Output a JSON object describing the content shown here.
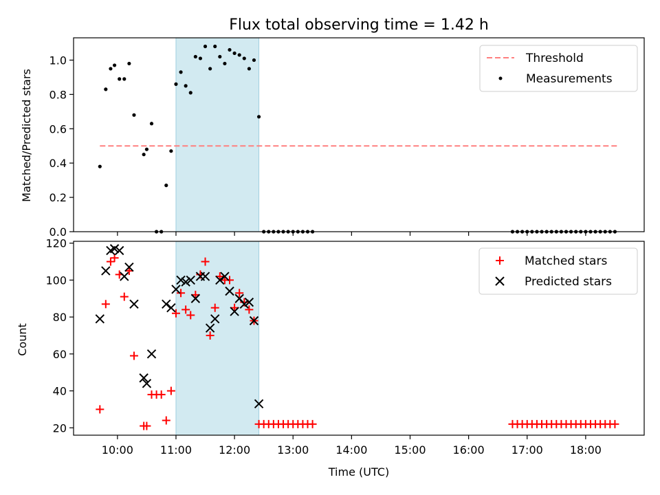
{
  "title": "Flux total observing time = 1.42 h",
  "chart_data": [
    {
      "type": "scatter",
      "ylabel": "Matched/Predicted stars",
      "xlabel": "",
      "ylim": [
        0,
        1.13
      ],
      "xlim": [
        "09:15",
        "19:00"
      ],
      "yticks": [
        "0.0",
        "0.2",
        "0.4",
        "0.6",
        "0.8",
        "1.0"
      ],
      "shaded_span": [
        "11:00",
        "12:25"
      ],
      "legend_position": "top-right",
      "threshold": {
        "name": "Threshold",
        "value": 0.5,
        "x_range": [
          "09:42",
          "18:32"
        ],
        "color": "#ff7f7f"
      },
      "series": [
        {
          "name": "Measurements",
          "color": "#000000",
          "points": [
            [
              "09:42",
              0.38
            ],
            [
              "09:48",
              0.83
            ],
            [
              "09:53",
              0.95
            ],
            [
              "09:57",
              0.97
            ],
            [
              "10:02",
              0.89
            ],
            [
              "10:07",
              0.89
            ],
            [
              "10:12",
              0.98
            ],
            [
              "10:17",
              0.68
            ],
            [
              "10:27",
              0.45
            ],
            [
              "10:30",
              0.48
            ],
            [
              "10:35",
              0.63
            ],
            [
              "10:40",
              0.0
            ],
            [
              "10:45",
              0.0
            ],
            [
              "10:50",
              0.27
            ],
            [
              "10:55",
              0.47
            ],
            [
              "11:00",
              0.86
            ],
            [
              "11:05",
              0.93
            ],
            [
              "11:10",
              0.85
            ],
            [
              "11:15",
              0.81
            ],
            [
              "11:20",
              1.02
            ],
            [
              "11:25",
              1.01
            ],
            [
              "11:30",
              1.08
            ],
            [
              "11:35",
              0.95
            ],
            [
              "11:40",
              1.08
            ],
            [
              "11:45",
              1.02
            ],
            [
              "11:50",
              0.98
            ],
            [
              "11:55",
              1.06
            ],
            [
              "12:00",
              1.04
            ],
            [
              "12:05",
              1.03
            ],
            [
              "12:10",
              1.01
            ],
            [
              "12:15",
              0.95
            ],
            [
              "12:20",
              1.0
            ],
            [
              "12:25",
              0.67
            ],
            [
              "12:30",
              0.0
            ],
            [
              "12:35",
              0.0
            ],
            [
              "12:40",
              0.0
            ],
            [
              "12:45",
              0.0
            ],
            [
              "12:50",
              0.0
            ],
            [
              "12:55",
              0.0
            ],
            [
              "13:00",
              0.0
            ],
            [
              "13:05",
              0.0
            ],
            [
              "13:10",
              0.0
            ],
            [
              "13:15",
              0.0
            ],
            [
              "13:20",
              0.0
            ],
            [
              "16:45",
              0.0
            ],
            [
              "16:50",
              0.0
            ],
            [
              "16:55",
              0.0
            ],
            [
              "17:00",
              0.0
            ],
            [
              "17:05",
              0.0
            ],
            [
              "17:10",
              0.0
            ],
            [
              "17:15",
              0.0
            ],
            [
              "17:20",
              0.0
            ],
            [
              "17:25",
              0.0
            ],
            [
              "17:30",
              0.0
            ],
            [
              "17:35",
              0.0
            ],
            [
              "17:40",
              0.0
            ],
            [
              "17:45",
              0.0
            ],
            [
              "17:50",
              0.0
            ],
            [
              "17:55",
              0.0
            ],
            [
              "18:00",
              0.0
            ],
            [
              "18:05",
              0.0
            ],
            [
              "18:10",
              0.0
            ],
            [
              "18:15",
              0.0
            ],
            [
              "18:20",
              0.0
            ],
            [
              "18:25",
              0.0
            ],
            [
              "18:30",
              0.0
            ]
          ]
        }
      ]
    },
    {
      "type": "scatter",
      "ylabel": "Count",
      "xlabel": "Time (UTC)",
      "ylim": [
        16,
        121
      ],
      "xlim": [
        "09:15",
        "19:00"
      ],
      "yticks": [
        "20",
        "40",
        "60",
        "80",
        "100",
        "120"
      ],
      "xticks": [
        "10:00",
        "11:00",
        "12:00",
        "13:00",
        "14:00",
        "15:00",
        "16:00",
        "17:00",
        "18:00"
      ],
      "shaded_span": [
        "11:00",
        "12:25"
      ],
      "legend_position": "top-right",
      "series": [
        {
          "name": "Matched stars",
          "marker": "plus",
          "color": "#ff0000",
          "points": [
            [
              "09:42",
              30
            ],
            [
              "09:48",
              87
            ],
            [
              "09:53",
              110
            ],
            [
              "09:57",
              112
            ],
            [
              "10:02",
              103
            ],
            [
              "10:07",
              91
            ],
            [
              "10:12",
              105
            ],
            [
              "10:17",
              59
            ],
            [
              "10:27",
              21
            ],
            [
              "10:30",
              21
            ],
            [
              "10:35",
              38
            ],
            [
              "10:40",
              38
            ],
            [
              "10:45",
              38
            ],
            [
              "10:50",
              24
            ],
            [
              "10:55",
              40
            ],
            [
              "11:00",
              82
            ],
            [
              "11:05",
              93
            ],
            [
              "11:10",
              84
            ],
            [
              "11:15",
              81
            ],
            [
              "11:20",
              92
            ],
            [
              "11:25",
              103
            ],
            [
              "11:30",
              110
            ],
            [
              "11:35",
              70
            ],
            [
              "11:40",
              85
            ],
            [
              "11:45",
              102
            ],
            [
              "11:50",
              100
            ],
            [
              "11:55",
              100
            ],
            [
              "12:00",
              85
            ],
            [
              "12:05",
              93
            ],
            [
              "12:10",
              88
            ],
            [
              "12:15",
              84
            ],
            [
              "12:20",
              78
            ],
            [
              "12:25",
              22
            ],
            [
              "12:30",
              22
            ],
            [
              "12:35",
              22
            ],
            [
              "12:40",
              22
            ],
            [
              "12:45",
              22
            ],
            [
              "12:50",
              22
            ],
            [
              "12:55",
              22
            ],
            [
              "13:00",
              22
            ],
            [
              "13:05",
              22
            ],
            [
              "13:10",
              22
            ],
            [
              "13:15",
              22
            ],
            [
              "13:20",
              22
            ],
            [
              "16:45",
              22
            ],
            [
              "16:50",
              22
            ],
            [
              "16:55",
              22
            ],
            [
              "17:00",
              22
            ],
            [
              "17:05",
              22
            ],
            [
              "17:10",
              22
            ],
            [
              "17:15",
              22
            ],
            [
              "17:20",
              22
            ],
            [
              "17:25",
              22
            ],
            [
              "17:30",
              22
            ],
            [
              "17:35",
              22
            ],
            [
              "17:40",
              22
            ],
            [
              "17:45",
              22
            ],
            [
              "17:50",
              22
            ],
            [
              "17:55",
              22
            ],
            [
              "18:00",
              22
            ],
            [
              "18:05",
              22
            ],
            [
              "18:10",
              22
            ],
            [
              "18:15",
              22
            ],
            [
              "18:20",
              22
            ],
            [
              "18:25",
              22
            ],
            [
              "18:30",
              22
            ]
          ]
        },
        {
          "name": "Predicted stars",
          "marker": "x",
          "color": "#000000",
          "points": [
            [
              "09:42",
              79
            ],
            [
              "09:48",
              105
            ],
            [
              "09:53",
              116
            ],
            [
              "09:57",
              117
            ],
            [
              "10:02",
              116
            ],
            [
              "10:07",
              102
            ],
            [
              "10:12",
              107
            ],
            [
              "10:17",
              87
            ],
            [
              "10:27",
              47
            ],
            [
              "10:30",
              44
            ],
            [
              "10:35",
              60
            ],
            [
              "10:50",
              87
            ],
            [
              "10:55",
              85
            ],
            [
              "11:00",
              95
            ],
            [
              "11:05",
              100
            ],
            [
              "11:10",
              99
            ],
            [
              "11:15",
              100
            ],
            [
              "11:20",
              90
            ],
            [
              "11:25",
              102
            ],
            [
              "11:30",
              102
            ],
            [
              "11:35",
              74
            ],
            [
              "11:40",
              79
            ],
            [
              "11:45",
              100
            ],
            [
              "11:50",
              102
            ],
            [
              "11:55",
              94
            ],
            [
              "12:00",
              83
            ],
            [
              "12:05",
              90
            ],
            [
              "12:10",
              87
            ],
            [
              "12:15",
              88
            ],
            [
              "12:20",
              78
            ],
            [
              "12:25",
              33
            ]
          ]
        }
      ]
    }
  ]
}
